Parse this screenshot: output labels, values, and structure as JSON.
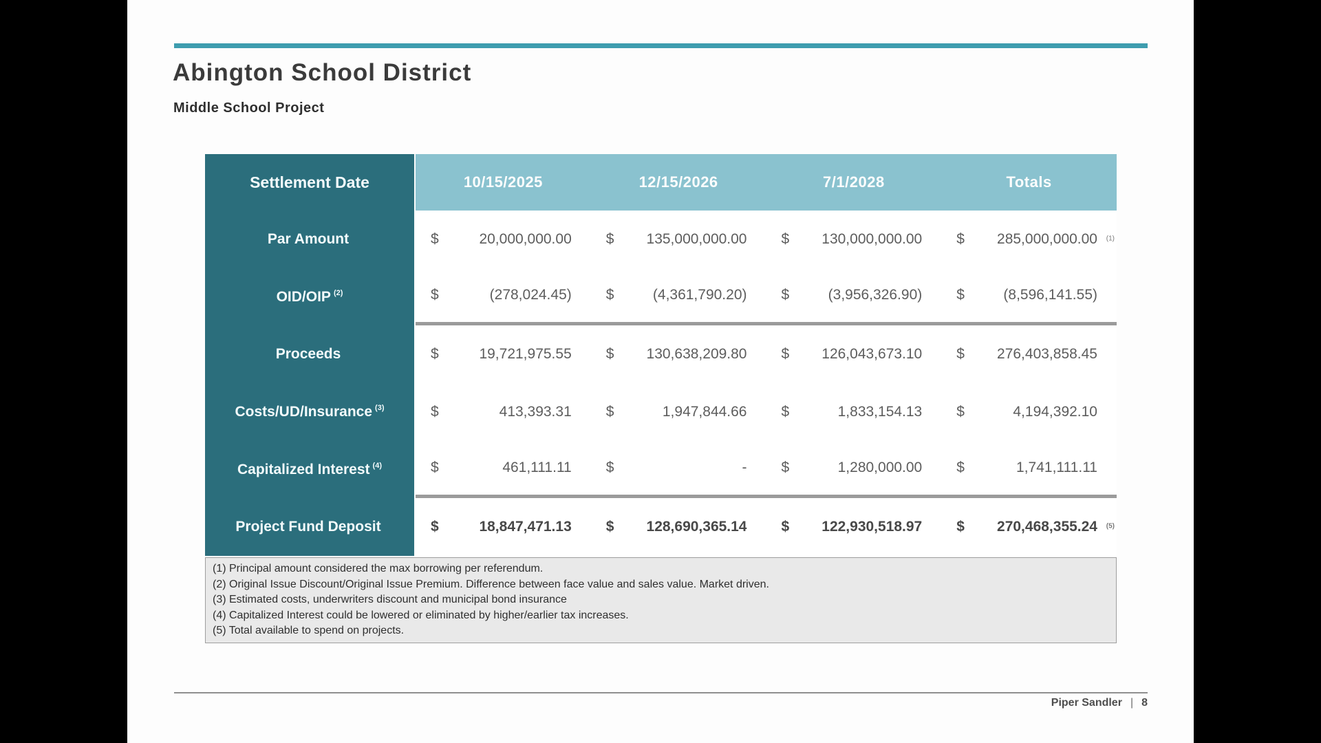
{
  "slide": {
    "title": "Abington School District",
    "subtitle": "Middle School Project",
    "footer": {
      "brand": "Piper Sandler",
      "separator": "|",
      "page_number": "8"
    }
  },
  "colors": {
    "accent_rule": "#3e9daf",
    "label_column_teal": "#2b6e7c",
    "header_row_teal": "#8ac2cf",
    "separator_gray": "#9b9b9b",
    "footnote_background": "#e9e9e9"
  },
  "table": {
    "corner_label": "Settlement Date",
    "columns": [
      "10/15/2025",
      "12/15/2026",
      "7/1/2028",
      "Totals"
    ],
    "rows": [
      {
        "label": "Par Amount",
        "label_note": "",
        "cells": [
          {
            "currency": "$",
            "value": "20,000,000.00"
          },
          {
            "currency": "$",
            "value": "135,000,000.00"
          },
          {
            "currency": "$",
            "value": "130,000,000.00"
          },
          {
            "currency": "$",
            "value": "285,000,000.00"
          }
        ],
        "total_note": "(1)"
      },
      {
        "label": "OID/OIP",
        "label_note": "(2)",
        "cells": [
          {
            "currency": "$",
            "value": "(278,024.45)"
          },
          {
            "currency": "$",
            "value": "(4,361,790.20)"
          },
          {
            "currency": "$",
            "value": "(3,956,326.90)"
          },
          {
            "currency": "$",
            "value": "(8,596,141.55)"
          }
        ],
        "total_note": ""
      },
      {
        "label": "Proceeds",
        "label_note": "",
        "cells": [
          {
            "currency": "$",
            "value": "19,721,975.55"
          },
          {
            "currency": "$",
            "value": "130,638,209.80"
          },
          {
            "currency": "$",
            "value": "126,043,673.10"
          },
          {
            "currency": "$",
            "value": "276,403,858.45"
          }
        ],
        "total_note": ""
      },
      {
        "label": "Costs/UD/Insurance",
        "label_note": "(3)",
        "cells": [
          {
            "currency": "$",
            "value": "413,393.31"
          },
          {
            "currency": "$",
            "value": "1,947,844.66"
          },
          {
            "currency": "$",
            "value": "1,833,154.13"
          },
          {
            "currency": "$",
            "value": "4,194,392.10"
          }
        ],
        "total_note": ""
      },
      {
        "label": "Capitalized Interest",
        "label_note": "(4)",
        "cells": [
          {
            "currency": "$",
            "value": "461,111.11"
          },
          {
            "currency": "$",
            "value": "-"
          },
          {
            "currency": "$",
            "value": "1,280,000.00"
          },
          {
            "currency": "$",
            "value": "1,741,111.11"
          }
        ],
        "total_note": ""
      },
      {
        "label": "Project Fund Deposit",
        "label_note": "",
        "cells": [
          {
            "currency": "$",
            "value": "18,847,471.13"
          },
          {
            "currency": "$",
            "value": "128,690,365.14"
          },
          {
            "currency": "$",
            "value": "122,930,518.97"
          },
          {
            "currency": "$",
            "value": "270,468,355.24"
          }
        ],
        "total_note": "(5)"
      }
    ],
    "footnotes": [
      "(1) Principal amount considered the max borrowing per referendum.",
      "(2) Original Issue Discount/Original Issue Premium.  Difference between face value and sales value.  Market driven.",
      "(3) Estimated costs, underwriters discount and municipal bond insurance",
      "(4) Capitalized Interest could be lowered or eliminated by higher/earlier tax increases.",
      "(5) Total available to spend on projects."
    ]
  }
}
